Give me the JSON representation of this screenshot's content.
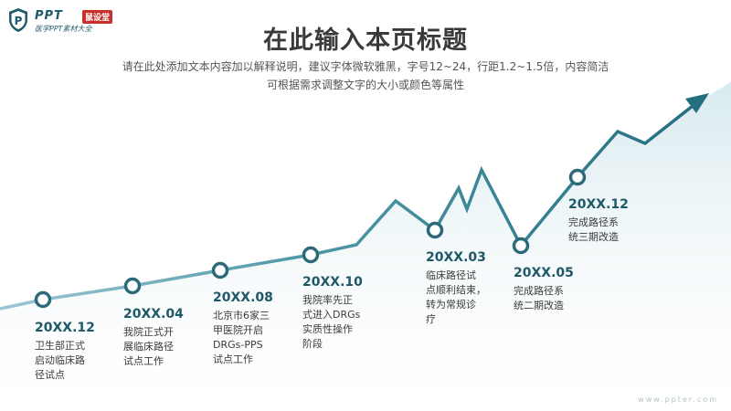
{
  "logo": {
    "brand": "PPT",
    "badge": "鼠设堂",
    "sub": "医学PPT素材大全"
  },
  "title": "在此输入本页标题",
  "subtitle_line1": "请在此处添加文本内容加以解释说明，建议字体微软雅黑，字号12~24，行距1.2~1.5倍，内容简洁",
  "subtitle_line2": "可根据需求调整文字的大小或颜色等属性",
  "colors": {
    "line_light": "#7fb4c2",
    "line_dark": "#2f7b8c",
    "text_dark": "#1e5868",
    "area": "#dcecf0"
  },
  "milestones": [
    {
      "year": "20XX.12",
      "desc": "卫生部正式\n启动临床路\n径试点"
    },
    {
      "year": "20XX.04",
      "desc": "我院正式开\n展临床路径\n试点工作"
    },
    {
      "year": "20XX.08",
      "desc": "北京市6家三\n甲医院开启\nDRGs-PPS\n试点工作"
    },
    {
      "year": "20XX.10",
      "desc": "我院率先正\n式进入DRGs\n实质性操作\n阶段"
    },
    {
      "year": "20XX.03",
      "desc": "临床路径试\n点顺利结束，\n转为常规诊\n疗"
    },
    {
      "year": "20XX.05",
      "desc": "完成路径系\n统二期改造"
    },
    {
      "year": "20XX.12",
      "desc": "完成路径系\n统三期改造"
    }
  ],
  "watermark": "www.ppter.com"
}
